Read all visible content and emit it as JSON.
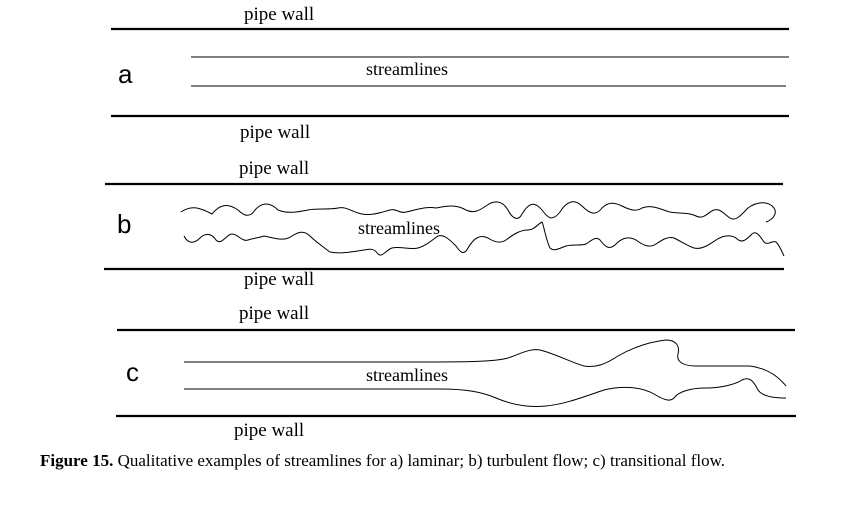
{
  "panels": [
    {
      "letter": "a",
      "top_wall_label": "pipe wall",
      "streamlines_label": "streamlines",
      "bottom_wall_label": "pipe wall"
    },
    {
      "letter": "b",
      "top_wall_label": "pipe wall",
      "streamlines_label": "streamlines",
      "bottom_wall_label": "pipe wall"
    },
    {
      "letter": "c",
      "top_wall_label": "pipe wall",
      "streamlines_label": "streamlines",
      "bottom_wall_label": "pipe wall"
    }
  ],
  "caption": {
    "label": "Figure 15.",
    "text": " Qualitative examples of streamlines for a) laminar; b) turbulent flow; c) transitional flow."
  }
}
